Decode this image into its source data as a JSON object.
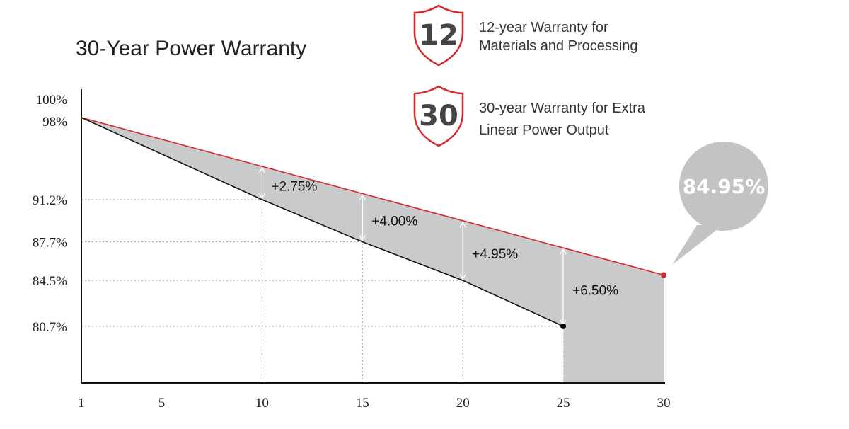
{
  "title": "30-Year Power Warranty",
  "badges": [
    {
      "number": "12",
      "line1": "12-year Warranty for",
      "line2": "Materials and Processing"
    },
    {
      "number": "30",
      "line1": "30-year Warranty for Extra",
      "line2": "Linear Power Output"
    }
  ],
  "callout": "84.95%",
  "colors": {
    "red": "#d9262b",
    "fill": "#c9cacc",
    "bubble": "#c2c3c5",
    "line": "#111111"
  },
  "chart_data": {
    "type": "line",
    "x_ticks": [
      "1",
      "5",
      "10",
      "15",
      "20",
      "25",
      "30"
    ],
    "y_ticks": [
      "100%",
      "98%",
      "91.2%",
      "87.7%",
      "84.5%",
      "80.7%"
    ],
    "xlim": [
      1,
      30
    ],
    "ylim": [
      76,
      100
    ],
    "series": [
      {
        "x": [
          1,
          30
        ],
        "y": [
          98,
          84.95
        ],
        "color": "#d9262b"
      },
      {
        "x": [
          1,
          10,
          15,
          20,
          25
        ],
        "y": [
          98,
          91.2,
          87.7,
          84.5,
          80.7
        ],
        "color": "#111111"
      }
    ],
    "gaps": [
      {
        "x": 10,
        "label": "+2.75%"
      },
      {
        "x": 15,
        "label": "+4.00%"
      },
      {
        "x": 20,
        "label": "+4.95%"
      },
      {
        "x": 25,
        "label": "+6.50%"
      }
    ],
    "grid": "dotted reference lines at marked values"
  }
}
